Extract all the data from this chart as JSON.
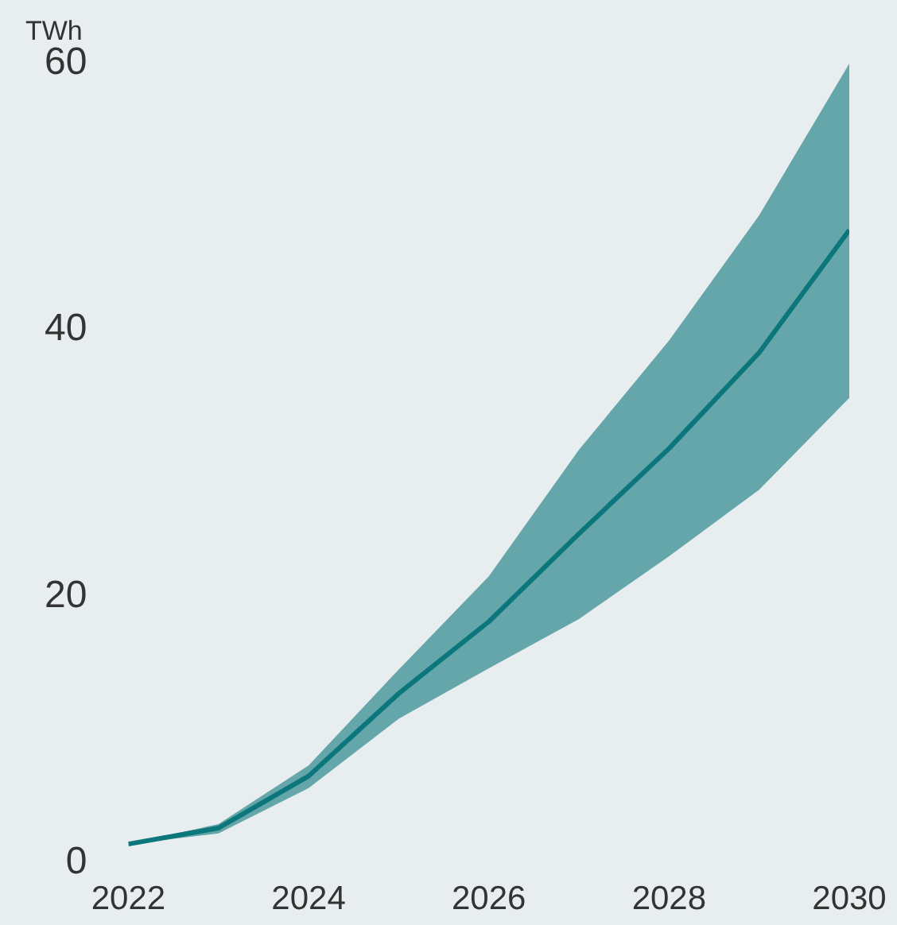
{
  "chart_data": {
    "type": "line",
    "ylabel": "TWh",
    "x": [
      2022,
      2023,
      2024,
      2025,
      2026,
      2027,
      2028,
      2029,
      2030
    ],
    "series": [
      {
        "color": "#0b777b",
        "values": [
          1.4,
          2.6,
          6.5,
          12.7,
          18.1,
          24.7,
          31.1,
          38.3,
          47.5
        ],
        "lower": [
          1.4,
          2.2,
          5.6,
          10.8,
          14.6,
          18.3,
          23,
          28,
          34.9
        ],
        "upper": [
          1.4,
          2.9,
          7.3,
          14.5,
          21.5,
          31,
          39.2,
          48.6,
          60
        ]
      }
    ],
    "xlim": [
      2022,
      2030
    ],
    "xticks": [
      2022,
      2024,
      2026,
      2028,
      2030
    ],
    "ylim": [
      0,
      60
    ],
    "yticks": [
      0,
      20,
      40,
      60
    ],
    "grid": false,
    "legend": false
  }
}
